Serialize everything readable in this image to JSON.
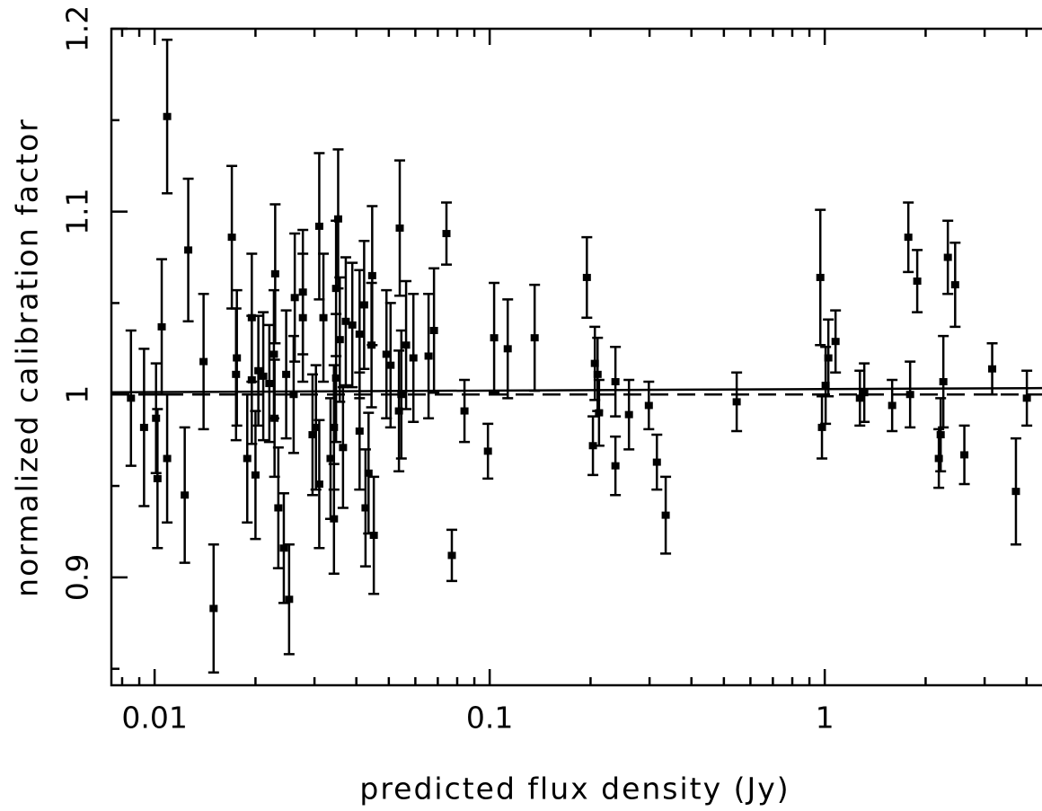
{
  "chart_data": {
    "type": "scatter",
    "xlabel": "predicted flux density (Jy)",
    "ylabel": "normalized calibration factor",
    "xlog": true,
    "xlim": [
      0.00743,
      4.45
    ],
    "ylim": [
      0.841,
      1.2
    ],
    "xticks": [
      0.01,
      0.1,
      1
    ],
    "xminor_ticks": [
      0.008,
      0.009,
      0.02,
      0.03,
      0.04,
      0.05,
      0.06,
      0.07,
      0.08,
      0.09,
      0.2,
      0.3,
      0.4,
      0.5,
      0.6,
      0.7,
      0.8,
      0.9,
      2,
      3,
      4
    ],
    "yticks": [
      0.9,
      1,
      1.1,
      1.2
    ],
    "yminor_ticks": [
      0.85,
      0.95,
      1.05,
      1.15
    ],
    "color": "#000000",
    "x": [
      0.0085,
      0.0093,
      0.0102,
      0.0101,
      0.0105,
      0.0109,
      0.0109,
      0.0123,
      0.0126,
      0.014,
      0.015,
      0.017,
      0.0175,
      0.0176,
      0.0189,
      0.0195,
      0.0195,
      0.02,
      0.0204,
      0.0211,
      0.022,
      0.0227,
      0.0228,
      0.0229,
      0.0234,
      0.0243,
      0.0252,
      0.0247,
      0.026,
      0.0262,
      0.0277,
      0.0277,
      0.0296,
      0.0303,
      0.031,
      0.031,
      0.0319,
      0.0335,
      0.0343,
      0.0343,
      0.0348,
      0.0348,
      0.0353,
      0.0357,
      0.0365,
      0.0372,
      0.0389,
      0.0409,
      0.0409,
      0.0422,
      0.0426,
      0.0435,
      0.0444,
      0.0446,
      0.0451,
      0.0492,
      0.0506,
      0.0536,
      0.0539,
      0.0563,
      0.0545,
      0.0592,
      0.0657,
      0.0682,
      0.0743,
      0.0771,
      0.0841,
      0.0988,
      0.1031,
      0.1132,
      0.1362,
      0.195,
      0.2033,
      0.206,
      0.2099,
      0.212,
      0.2373,
      0.2373,
      0.2604,
      0.2985,
      0.3155,
      0.3352,
      0.546,
      0.97,
      0.981,
      1.006,
      1.025,
      1.077,
      1.273,
      1.312,
      1.589,
      1.776,
      1.798,
      1.888,
      2.19,
      2.218,
      2.259,
      2.33,
      2.45,
      2.61,
      3.16,
      3.72,
      4.01
    ],
    "values": [
      0.998,
      0.982,
      0.954,
      0.987,
      1.037,
      0.965,
      1.152,
      0.945,
      1.079,
      1.018,
      0.883,
      1.086,
      1.011,
      1.02,
      0.965,
      1.008,
      1.042,
      0.956,
      1.013,
      1.01,
      1.006,
      1.022,
      0.987,
      1.066,
      0.938,
      0.916,
      0.888,
      1.011,
      1.0,
      1.053,
      1.056,
      1.042,
      0.978,
      0.982,
      1.092,
      0.951,
      1.042,
      0.965,
      0.982,
      0.932,
      1.009,
      1.058,
      1.096,
      1.03,
      0.971,
      1.04,
      1.038,
      1.033,
      0.98,
      1.049,
      0.938,
      0.957,
      1.027,
      1.065,
      0.923,
      1.022,
      1.016,
      0.991,
      1.091,
      1.027,
      1.0,
      1.02,
      1.021,
      1.035,
      1.088,
      0.912,
      0.991,
      0.969,
      1.031,
      1.025,
      1.031,
      1.064,
      0.972,
      1.017,
      1.011,
      0.99,
      1.007,
      0.961,
      0.989,
      0.994,
      0.963,
      0.934,
      0.996,
      1.064,
      0.982,
      1.005,
      1.02,
      1.029,
      0.998,
      1.001,
      0.994,
      1.086,
      1.0,
      1.062,
      0.965,
      0.978,
      1.007,
      1.075,
      1.06,
      0.967,
      1.014,
      0.947,
      0.998
    ],
    "errors": [
      0.037,
      0.043,
      0.038,
      0.03,
      0.037,
      0.035,
      0.042,
      0.037,
      0.039,
      0.037,
      0.035,
      0.039,
      0.036,
      0.037,
      0.035,
      0.035,
      0.035,
      0.035,
      0.03,
      0.035,
      0.032,
      0.035,
      0.032,
      0.038,
      0.033,
      0.03,
      0.03,
      0.035,
      0.032,
      0.035,
      0.034,
      0.035,
      0.033,
      0.034,
      0.04,
      0.035,
      0.035,
      0.033,
      0.034,
      0.03,
      0.035,
      0.037,
      0.038,
      0.034,
      0.033,
      0.035,
      0.034,
      0.035,
      0.032,
      0.035,
      0.032,
      0.033,
      0.034,
      0.038,
      0.032,
      0.035,
      0.034,
      0.033,
      0.037,
      0.035,
      0.035,
      0.035,
      0.034,
      0.034,
      0.017,
      0.014,
      0.017,
      0.015,
      0.03,
      0.027,
      0.029,
      0.022,
      0.016,
      0.02,
      0.02,
      0.018,
      0.019,
      0.016,
      0.019,
      0.013,
      0.015,
      0.021,
      0.016,
      0.037,
      0.017,
      0.021,
      0.021,
      0.017,
      0.015,
      0.016,
      0.014,
      0.019,
      0.018,
      0.017,
      0.016,
      0.02,
      0.025,
      0.02,
      0.023,
      0.016,
      0.014,
      0.029,
      0.015
    ],
    "reference_lines": [
      {
        "style": "solid",
        "x": [
          0.00743,
          4.45
        ],
        "y": [
          1.0012,
          1.0035
        ]
      },
      {
        "style": "dashed",
        "x": [
          0.00743,
          4.45
        ],
        "y": [
          1.0,
          1.0
        ]
      }
    ]
  }
}
